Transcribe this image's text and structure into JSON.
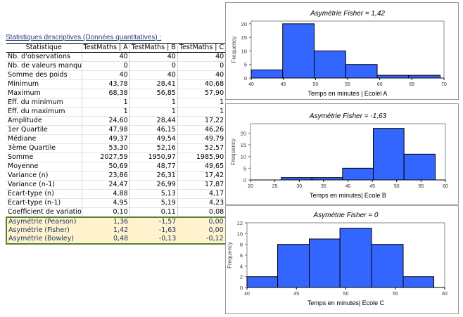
{
  "table": {
    "title": "Statistiques descriptives (Données quantitatives) :",
    "headers": [
      "Statistique",
      "TestMaths | A",
      "TestMaths | B",
      "TestMaths | C"
    ],
    "rows": [
      [
        "Nb. d'observations",
        "40",
        "40",
        "40"
      ],
      [
        "Nb. de valeurs manqua",
        "0",
        "0",
        "0"
      ],
      [
        "Somme des poids",
        "40",
        "40",
        "40"
      ],
      [
        "Minimum",
        "43,78",
        "28,41",
        "40,68"
      ],
      [
        "Maximum",
        "68,38",
        "56,85",
        "57,90"
      ],
      [
        "Eff. du minimum",
        "1",
        "1",
        "1"
      ],
      [
        "Eff. du maximum",
        "1",
        "1",
        "1"
      ],
      [
        "Amplitude",
        "24,60",
        "28,44",
        "17,22"
      ],
      [
        "1er Quartile",
        "47,98",
        "46,15",
        "46,26"
      ],
      [
        "Médiane",
        "49,37",
        "49,54",
        "49,79"
      ],
      [
        "3ème Quartile",
        "53,30",
        "52,16",
        "52,57"
      ],
      [
        "Somme",
        "2027,59",
        "1950,97",
        "1985,90"
      ],
      [
        "Moyenne",
        "50,69",
        "48,77",
        "49,65"
      ],
      [
        "Variance (n)",
        "23,86",
        "26,31",
        "17,42"
      ],
      [
        "Variance (n-1)",
        "24,47",
        "26,99",
        "17,87"
      ],
      [
        "Ecart-type (n)",
        "4,88",
        "5,13",
        "4,17"
      ],
      [
        "Ecart-type (n-1)",
        "4,95",
        "5,19",
        "4,23"
      ],
      [
        "Coefficient de variatior",
        "0,10",
        "0,11",
        "0,08"
      ]
    ],
    "highlighted_rows": [
      [
        "Asymétrie (Pearson)",
        "1,36",
        "-1,57",
        "0,00"
      ],
      [
        "Asymétrie (Fisher)",
        "1,42",
        "-1,63",
        "0,00"
      ],
      [
        "Asymétrie (Bowley)",
        "0,48",
        "-0,13",
        "-0,12"
      ]
    ],
    "highlight_bg": "#fff2cc",
    "highlight_border": "#548235"
  },
  "chart_data": [
    {
      "type": "bar",
      "subtype": "histogram",
      "title": "Asymétrie Fisher = 1,42",
      "xlabel": "Temps en minutes | Ecolel A",
      "ylabel": "Frequency",
      "bin_edges": [
        40,
        44.9,
        49.8,
        54.7,
        59.6,
        64.5,
        69.4
      ],
      "values": [
        3,
        20,
        10,
        5,
        1,
        1
      ],
      "xlim": [
        40,
        70
      ],
      "xticks": [
        "40",
        "45",
        "50",
        "55",
        "60",
        "65",
        "70"
      ],
      "ylim": [
        0,
        21
      ],
      "yticks": [
        "0",
        "5",
        "10",
        "15",
        "20"
      ],
      "color": "#3366ff",
      "grid": false
    },
    {
      "type": "bar",
      "subtype": "histogram",
      "title": "Asymétrie Fisher  = -1,63",
      "xlabel": "Temps en minutes| Ecole B",
      "ylabel": "Frequency",
      "bin_edges": [
        20,
        26.3,
        32.6,
        38.9,
        45.2,
        51.5,
        57.9
      ],
      "values": [
        0,
        1,
        1,
        5,
        22,
        11
      ],
      "xlim": [
        20,
        60
      ],
      "xticks": [
        "20",
        "25",
        "30",
        "35",
        "40",
        "45",
        "50",
        "55",
        "60"
      ],
      "ylim": [
        0,
        24
      ],
      "yticks": [
        "0",
        "5",
        "10",
        "15",
        "20"
      ],
      "color": "#3366ff",
      "grid": false
    },
    {
      "type": "bar",
      "subtype": "histogram",
      "title": "Asymétrie Fisher = 0",
      "xlabel": "Temps en minutes| Ecole C",
      "ylabel": "Frequency",
      "bin_edges": [
        40,
        43.1,
        46.3,
        49.4,
        52.6,
        55.8,
        58.9
      ],
      "values": [
        2,
        8,
        9,
        11,
        8,
        2
      ],
      "xlim": [
        40,
        60
      ],
      "xticks": [
        "40",
        "45",
        "50",
        "55",
        "60"
      ],
      "ylim": [
        0,
        12
      ],
      "yticks": [
        "0",
        "2",
        "4",
        "6",
        "8",
        "10",
        "12"
      ],
      "color": "#3366ff",
      "grid": false
    }
  ]
}
